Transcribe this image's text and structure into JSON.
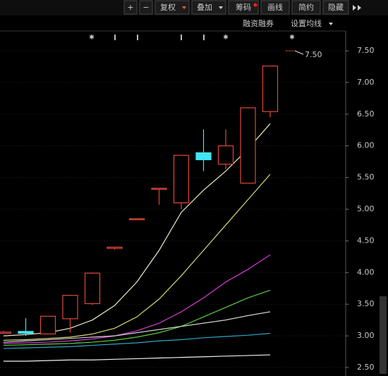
{
  "toolbar": {
    "buttons": [
      "+",
      "−",
      "复权",
      "叠加",
      "筹码",
      "画线",
      "简约",
      "隐藏"
    ],
    "menu": [
      "融资融券",
      "设置均线"
    ]
  },
  "chart_data": {
    "type": "candlestick",
    "categories": [
      null,
      null,
      null,
      null,
      null,
      null,
      null,
      null,
      null,
      null,
      null,
      null,
      null
    ],
    "open": [
      3.04,
      3.07,
      3.03,
      3.27,
      3.51,
      4.38,
      4.85,
      5.32,
      5.1,
      5.89,
      5.71,
      5.41,
      6.54
    ],
    "high": [
      3.08,
      3.28,
      3.31,
      3.64,
      4.0,
      4.41,
      4.85,
      5.33,
      5.85,
      6.26,
      6.26,
      6.6,
      7.26
    ],
    "low": [
      3.03,
      3.0,
      3.03,
      3.05,
      3.49,
      4.36,
      4.85,
      5.07,
      5.0,
      5.6,
      5.63,
      5.41,
      6.45
    ],
    "close": [
      3.06,
      3.04,
      3.31,
      3.64,
      3.99,
      4.4,
      4.85,
      5.33,
      5.85,
      5.78,
      6.0,
      6.6,
      7.26
    ],
    "up_color": "#e0483a",
    "down_color": "#40e4f4",
    "series": [
      {
        "color": "#ecebc8",
        "values": [
          3.0,
          3.02,
          3.05,
          3.12,
          3.25,
          3.48,
          3.85,
          4.35,
          4.95,
          5.3,
          5.6,
          5.95,
          6.35
        ]
      },
      {
        "color": "#d8d878",
        "values": [
          2.93,
          2.94,
          2.96,
          2.98,
          3.03,
          3.12,
          3.3,
          3.58,
          3.95,
          4.35,
          4.75,
          5.15,
          5.55
        ]
      },
      {
        "color": "#d83cd8",
        "values": [
          2.88,
          2.89,
          2.9,
          2.92,
          2.95,
          3.0,
          3.08,
          3.2,
          3.38,
          3.6,
          3.85,
          4.05,
          4.28
        ]
      },
      {
        "color": "#5ccc3c",
        "values": [
          2.85,
          2.86,
          2.87,
          2.88,
          2.9,
          2.93,
          2.98,
          3.05,
          3.15,
          3.3,
          3.45,
          3.6,
          3.72
        ]
      },
      {
        "color": "#d0d0d0",
        "values": [
          2.9,
          2.92,
          2.94,
          2.96,
          2.98,
          3.0,
          3.05,
          3.1,
          3.15,
          3.2,
          3.25,
          3.32,
          3.38
        ]
      },
      {
        "color": "#2ea4c8",
        "values": [
          2.8,
          2.81,
          2.82,
          2.83,
          2.85,
          2.87,
          2.89,
          2.92,
          2.94,
          2.97,
          2.99,
          3.01,
          3.04
        ]
      },
      {
        "color": "#f0f0f0",
        "values": [
          2.6,
          2.6,
          2.61,
          2.62,
          2.62,
          2.63,
          2.64,
          2.65,
          2.66,
          2.67,
          2.68,
          2.69,
          2.7
        ]
      }
    ],
    "annotation": "7.50",
    "ylim": [
      2.5,
      7.5
    ],
    "yticks": [
      {
        "value": 2.5,
        "label": "2.50"
      },
      {
        "value": 3,
        "label": "3.00"
      },
      {
        "value": 3.5,
        "label": "3.50"
      },
      {
        "value": 4,
        "label": "4.00"
      },
      {
        "value": 4.5,
        "label": "4.50"
      },
      {
        "value": 5,
        "label": "5.00"
      },
      {
        "value": 5.5,
        "label": "5.50"
      },
      {
        "value": 6,
        "label": "6.00"
      },
      {
        "value": 6.5,
        "label": "6.50"
      },
      {
        "value": 7,
        "label": "7.00"
      },
      {
        "value": 7.5,
        "label": "7.50"
      }
    ],
    "grid": true
  }
}
